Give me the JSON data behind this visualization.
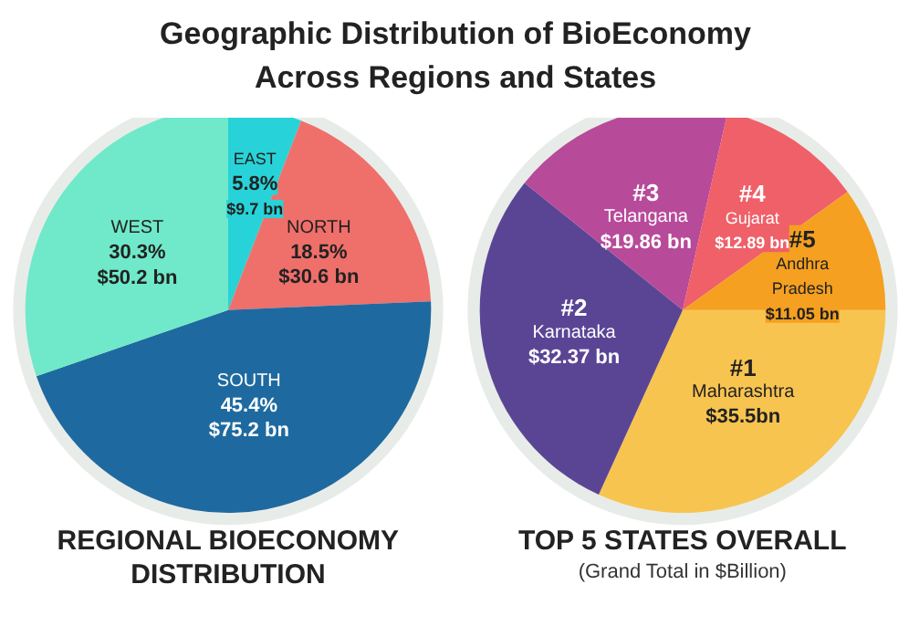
{
  "chart_data": [
    {
      "type": "other",
      "title": "Geographic Distribution of BioEconomy\nAcross Regions and States"
    },
    {
      "type": "pie",
      "title": "REGIONAL BIOECONOMY\nDISTRIBUTION",
      "categories": [
        "EAST",
        "NORTH",
        "SOUTH",
        "WEST"
      ],
      "values": [
        9.7,
        30.6,
        75.2,
        50.2
      ],
      "colors": [
        "#27d3d8",
        "#ef6f6a",
        "#1e6aa0",
        "#6fe9c9"
      ],
      "value_labels": [
        "$9.7 bn",
        "$30.6 bn",
        "$75.2 bn",
        "$50.2 bn"
      ],
      "annotations": [
        "5.8%",
        "18.5%",
        "45.4%",
        "30.3%"
      ]
    },
    {
      "type": "pie",
      "title": "TOP 5 STATES OVERALL",
      "subtitle": "(Grand Total in $Billion)",
      "categories": [
        "Maharashtra",
        "Karnataka",
        "Telangana",
        "Gujarat",
        "Andhra Pradesh"
      ],
      "values": [
        35.5,
        32.37,
        19.86,
        12.89,
        11.05
      ],
      "colors": [
        "#f8c450",
        "#5a4595",
        "#b84a9a",
        "#ef6068",
        "#f5a020"
      ],
      "value_labels": [
        "$35.5bn",
        "$32.37 bn",
        "$19.86 bn",
        "$12.89 bn",
        "$11.05 bn"
      ],
      "annotations": [
        "#1",
        "#2",
        "#3",
        "#4",
        "#5"
      ]
    }
  ]
}
